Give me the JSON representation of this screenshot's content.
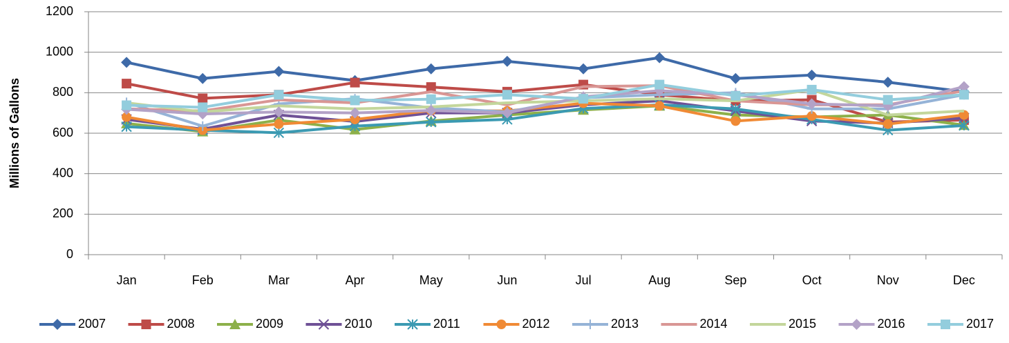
{
  "chart_data": {
    "type": "line",
    "y_label": "Millions of Gallons",
    "categories": [
      "Jan",
      "Feb",
      "Mar",
      "Apr",
      "May",
      "Jun",
      "Jul",
      "Aug",
      "Sep",
      "Oct",
      "Nov",
      "Dec"
    ],
    "ylim": [
      0,
      1200
    ],
    "yticks": [
      0,
      200,
      400,
      600,
      800,
      1000,
      1200
    ],
    "grid": true,
    "legend": "bottom",
    "series": [
      {
        "name": "2007",
        "color": "#3e6aa8",
        "marker": "diamond",
        "values": [
          950,
          870,
          905,
          860,
          918,
          955,
          918,
          973,
          870,
          887,
          852,
          805
        ]
      },
      {
        "name": "2008",
        "color": "#be4b48",
        "marker": "square",
        "values": [
          845,
          772,
          790,
          850,
          828,
          805,
          840,
          790,
          760,
          765,
          655,
          665
        ]
      },
      {
        "name": "2009",
        "color": "#8db04a",
        "marker": "triangle",
        "values": [
          648,
          608,
          665,
          618,
          660,
          690,
          715,
          735,
          690,
          680,
          690,
          640
        ]
      },
      {
        "name": "2010",
        "color": "#6f5196",
        "marker": "x",
        "values": [
          668,
          620,
          690,
          658,
          700,
          700,
          740,
          760,
          710,
          660,
          650,
          675
        ]
      },
      {
        "name": "2011",
        "color": "#3b9ab2",
        "marker": "star",
        "values": [
          632,
          615,
          602,
          635,
          655,
          668,
          722,
          740,
          720,
          668,
          615,
          638
        ]
      },
      {
        "name": "2012",
        "color": "#f08a35",
        "marker": "circle",
        "values": [
          680,
          615,
          645,
          668,
          712,
          710,
          748,
          735,
          660,
          685,
          645,
          690
        ]
      },
      {
        "name": "2013",
        "color": "#95b3d7",
        "marker": "plus",
        "values": [
          752,
          635,
          745,
          770,
          725,
          705,
          775,
          790,
          800,
          720,
          720,
          790
        ]
      },
      {
        "name": "2014",
        "color": "#d99694",
        "marker": "none",
        "values": [
          720,
          710,
          765,
          750,
          805,
          740,
          830,
          835,
          760,
          740,
          740,
          810
        ]
      },
      {
        "name": "2015",
        "color": "#c3d69b",
        "marker": "none",
        "values": [
          750,
          705,
          735,
          720,
          730,
          750,
          760,
          770,
          760,
          815,
          690,
          710
        ]
      },
      {
        "name": "2016",
        "color": "#b3a2c7",
        "marker": "diamond",
        "values": [
          718,
          695,
          705,
          700,
          712,
          700,
          780,
          810,
          790,
          745,
          735,
          830
        ]
      },
      {
        "name": "2017",
        "color": "#93cddd",
        "marker": "square",
        "values": [
          738,
          728,
          790,
          762,
          768,
          790,
          770,
          840,
          785,
          815,
          765,
          790
        ]
      }
    ]
  }
}
